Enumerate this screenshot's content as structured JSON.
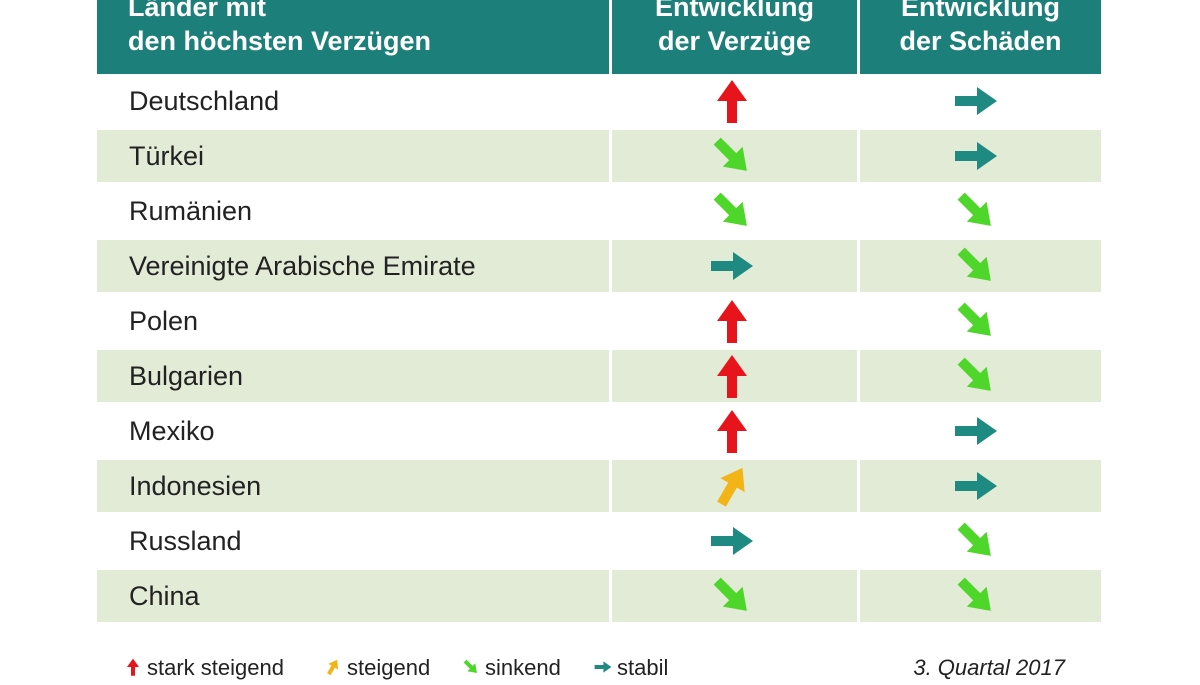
{
  "header": {
    "col1_line1": "Länder mit",
    "col1_line2": "den höchsten Verzügen",
    "col2_line1": "Entwicklung",
    "col2_line2": "der Verzüge",
    "col3_line1": "Entwicklung",
    "col3_line2": "der Schäden"
  },
  "colors": {
    "header_bg": "#1d7f79",
    "row_alt_bg": "#e1ebd6",
    "stark_steigend": "#e8141c",
    "steigend": "#f2b417",
    "sinkend": "#4fd62a",
    "stabil": "#1e8a82"
  },
  "rows": [
    {
      "land": "Deutschland",
      "verzuege": "stark_steigend",
      "schaeden": "stabil"
    },
    {
      "land": "Türkei",
      "verzuege": "sinkend",
      "schaeden": "stabil"
    },
    {
      "land": "Rumänien",
      "verzuege": "sinkend",
      "schaeden": "sinkend"
    },
    {
      "land": "Vereinigte Arabische Emirate",
      "verzuege": "stabil",
      "schaeden": "sinkend"
    },
    {
      "land": "Polen",
      "verzuege": "stark_steigend",
      "schaeden": "sinkend"
    },
    {
      "land": "Bulgarien",
      "verzuege": "stark_steigend",
      "schaeden": "sinkend"
    },
    {
      "land": "Mexiko",
      "verzuege": "stark_steigend",
      "schaeden": "stabil"
    },
    {
      "land": "Indonesien",
      "verzuege": "steigend",
      "schaeden": "stabil"
    },
    {
      "land": "Russland",
      "verzuege": "stabil",
      "schaeden": "sinkend"
    },
    {
      "land": "China",
      "verzuege": "sinkend",
      "schaeden": "sinkend"
    }
  ],
  "legend": {
    "stark_steigend": "stark steigend",
    "steigend": "steigend",
    "sinkend": "sinkend",
    "stabil": "stabil",
    "period": "3. Quartal 2017"
  }
}
